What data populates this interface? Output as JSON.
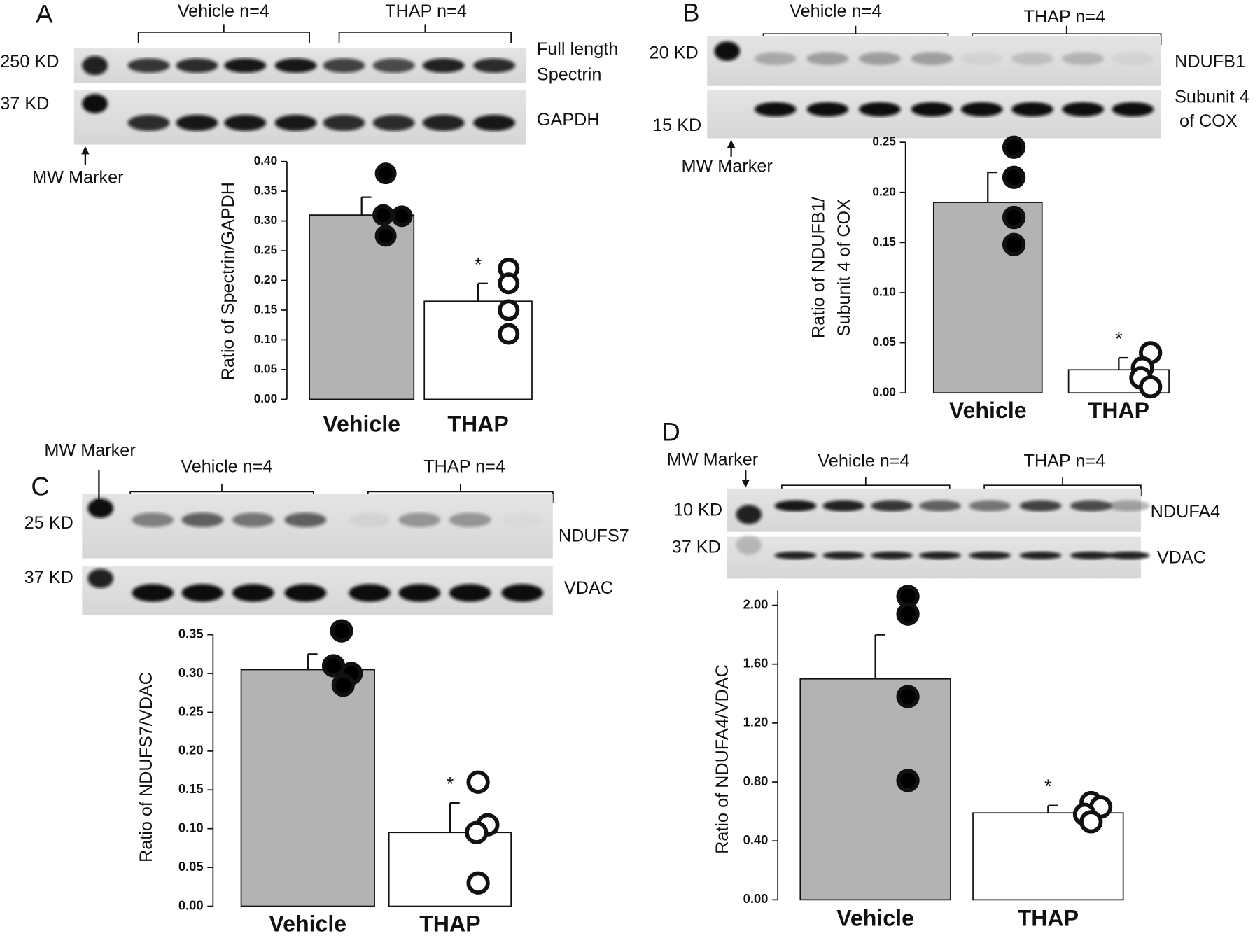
{
  "chart_data": [
    {
      "type": "bar",
      "ylabel": [
        "Ratio of Spectrin/GAPDH"
      ],
      "categories": [
        "Vehicle",
        "THAP"
      ],
      "values": [
        0.31,
        0.165
      ],
      "errors": [
        0.03,
        0.03
      ],
      "colors": [
        "#b3b3b3",
        "#ffffff"
      ],
      "point_colors": [
        "#000000",
        "#ffffff"
      ],
      "points": [
        [
          0.38,
          0.31,
          0.308,
          0.275
        ],
        [
          0.22,
          0.195,
          0.15,
          0.11
        ]
      ],
      "significance": "*",
      "ylim": [
        0,
        0.4
      ],
      "yticks": [
        {
          "value": 0,
          "label": "0.00"
        },
        {
          "value": 0.05,
          "label": "0.05"
        },
        {
          "value": 0.1,
          "label": "0.10"
        },
        {
          "value": 0.15,
          "label": "0.15"
        },
        {
          "value": 0.2,
          "label": "0.20"
        },
        {
          "value": 0.25,
          "label": "0.25"
        },
        {
          "value": 0.3,
          "label": "0.30"
        },
        {
          "value": 0.35,
          "label": "0.35"
        },
        {
          "value": 0.4,
          "label": "0.40"
        }
      ]
    },
    {
      "type": "bar",
      "ylabel": [
        "Ratio of NDUFB1/",
        "Subunit 4 of COX"
      ],
      "categories": [
        "Vehicle",
        "THAP"
      ],
      "values": [
        0.19,
        0.023
      ],
      "errors": [
        0.03,
        0.012
      ],
      "colors": [
        "#b3b3b3",
        "#ffffff"
      ],
      "point_colors": [
        "#000000",
        "#ffffff"
      ],
      "points": [
        [
          0.245,
          0.215,
          0.175,
          0.148
        ],
        [
          0.04,
          0.025,
          0.015,
          0.006
        ]
      ],
      "significance": "*",
      "ylim": [
        0,
        0.25
      ],
      "yticks": [
        {
          "value": 0,
          "label": "0.00"
        },
        {
          "value": 0.05,
          "label": "0.05"
        },
        {
          "value": 0.1,
          "label": "0.10"
        },
        {
          "value": 0.15,
          "label": "0.15"
        },
        {
          "value": 0.2,
          "label": "0.20"
        },
        {
          "value": 0.25,
          "label": "0.25"
        }
      ]
    },
    {
      "type": "bar",
      "ylabel": [
        "Ratio of NDUFS7/VDAC"
      ],
      "categories": [
        "Vehicle",
        "THAP"
      ],
      "values": [
        0.305,
        0.095
      ],
      "errors": [
        0.02,
        0.038
      ],
      "colors": [
        "#b3b3b3",
        "#ffffff"
      ],
      "point_colors": [
        "#000000",
        "#ffffff"
      ],
      "points": [
        [
          0.355,
          0.31,
          0.3,
          0.285
        ],
        [
          0.16,
          0.105,
          0.095,
          0.03
        ]
      ],
      "significance": "*",
      "ylim": [
        0,
        0.35
      ],
      "yticks": [
        {
          "value": 0,
          "label": "0.00"
        },
        {
          "value": 0.05,
          "label": "0.05"
        },
        {
          "value": 0.1,
          "label": "0.10"
        },
        {
          "value": 0.15,
          "label": "0.15"
        },
        {
          "value": 0.2,
          "label": "0.20"
        },
        {
          "value": 0.25,
          "label": "0.25"
        },
        {
          "value": 0.3,
          "label": "0.30"
        },
        {
          "value": 0.35,
          "label": "0.35"
        }
      ]
    },
    {
      "type": "bar",
      "ylabel": [
        "Ratio of NDUFA4/VDAC"
      ],
      "categories": [
        "Vehicle",
        "THAP"
      ],
      "values": [
        1.5,
        0.59
      ],
      "errors": [
        0.3,
        0.05
      ],
      "colors": [
        "#b3b3b3",
        "#ffffff"
      ],
      "point_colors": [
        "#000000",
        "#ffffff"
      ],
      "points": [
        [
          2.06,
          1.94,
          1.38,
          0.81
        ],
        [
          0.66,
          0.63,
          0.58,
          0.53
        ]
      ],
      "significance": "*",
      "ylim": [
        0,
        2.1
      ],
      "yticks": [
        {
          "value": 0,
          "label": "0.00"
        },
        {
          "value": 0.4,
          "label": "0.40"
        },
        {
          "value": 0.8,
          "label": "0.80"
        },
        {
          "value": 1.2,
          "label": "1.20"
        },
        {
          "value": 1.6,
          "label": "1.60"
        },
        {
          "value": 2,
          "label": "2.00"
        }
      ]
    }
  ],
  "blots": [
    {
      "letter": "A",
      "groups": [
        "Vehicle n=4",
        "THAP n=4"
      ],
      "mw": [
        "250 KD",
        "37 KD"
      ],
      "right": [
        "Full length",
        "Spectrin",
        "GAPDH"
      ],
      "marker": "MW Marker"
    },
    {
      "letter": "B",
      "groups": [
        "Vehicle n=4",
        "THAP n=4"
      ],
      "mw": [
        "20 KD",
        "15 KD"
      ],
      "right": [
        "NDUFB1",
        "Subunit 4",
        "of COX"
      ],
      "marker": "MW Marker"
    },
    {
      "letter": "C",
      "groups": [
        "Vehicle n=4",
        "THAP n=4"
      ],
      "mw": [
        "25 KD",
        "37 KD"
      ],
      "right": [
        "NDUFS7",
        "VDAC"
      ],
      "marker": "MW Marker"
    },
    {
      "letter": "D",
      "groups": [
        "Vehicle n=4",
        "THAP n=4"
      ],
      "mw": [
        "10 KD",
        "37 KD"
      ],
      "right": [
        "NDUFA4",
        "VDAC"
      ],
      "marker": "MW Marker"
    }
  ]
}
